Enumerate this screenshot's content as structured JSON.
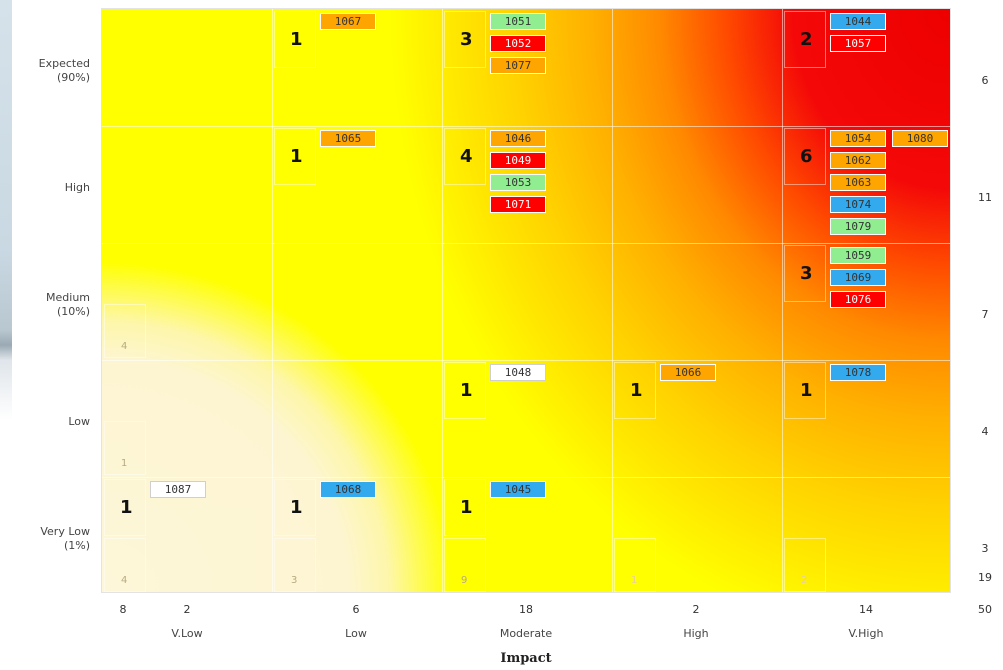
{
  "chart_data": {
    "type": "heatmap",
    "xlabel": "Impact",
    "impact_categories": [
      "V.Low",
      "Low",
      "Moderate",
      "High",
      "V.High"
    ],
    "likelihood_categories": [
      "Expected\n(90%)",
      "High",
      "Medium\n(10%)",
      "Low",
      "Very Low\n(1%)"
    ],
    "column_totals": [
      "2",
      "6",
      "18",
      "2",
      "14"
    ],
    "row_totals": [
      "6",
      "11",
      "7",
      "4",
      "3"
    ],
    "left_corner_total": "8",
    "left_cell_extra_totals": [
      "4",
      "1"
    ],
    "grand_total": "50",
    "secondary_grand_total": "19",
    "cells": [
      {
        "row": 0,
        "col": 1,
        "count": "1",
        "items": [
          {
            "id": "1067",
            "status": "orange"
          }
        ]
      },
      {
        "row": 0,
        "col": 2,
        "count": "3",
        "items": [
          {
            "id": "1051",
            "status": "green"
          },
          {
            "id": "1052",
            "status": "red"
          },
          {
            "id": "1077",
            "status": "orange"
          }
        ]
      },
      {
        "row": 0,
        "col": 4,
        "count": "2",
        "items": [
          {
            "id": "1044",
            "status": "blue"
          },
          {
            "id": "1057",
            "status": "red"
          }
        ]
      },
      {
        "row": 1,
        "col": 1,
        "count": "1",
        "items": [
          {
            "id": "1065",
            "status": "orange"
          }
        ]
      },
      {
        "row": 1,
        "col": 2,
        "count": "4",
        "items": [
          {
            "id": "1046",
            "status": "orange"
          },
          {
            "id": "1049",
            "status": "red"
          },
          {
            "id": "1053",
            "status": "green"
          },
          {
            "id": "1071",
            "status": "red"
          }
        ]
      },
      {
        "row": 1,
        "col": 4,
        "count": "6",
        "items": [
          {
            "id": "1054",
            "status": "orange"
          },
          {
            "id": "1080",
            "status": "orange"
          },
          {
            "id": "1062",
            "status": "orange"
          },
          {
            "id": "1063",
            "status": "orange"
          },
          {
            "id": "1074",
            "status": "blue"
          },
          {
            "id": "1079",
            "status": "green"
          }
        ]
      },
      {
        "row": 2,
        "col": 4,
        "count": "3",
        "items": [
          {
            "id": "1059",
            "status": "green"
          },
          {
            "id": "1069",
            "status": "blue"
          },
          {
            "id": "1076",
            "status": "red"
          }
        ]
      },
      {
        "row": 3,
        "col": 2,
        "count": "1",
        "items": [
          {
            "id": "1048",
            "status": "white"
          }
        ]
      },
      {
        "row": 3,
        "col": 3,
        "count": "1",
        "items": [
          {
            "id": "1066",
            "status": "orange"
          }
        ]
      },
      {
        "row": 3,
        "col": 4,
        "count": "1",
        "items": [
          {
            "id": "1078",
            "status": "blue"
          }
        ]
      },
      {
        "row": 4,
        "col": 0,
        "count": "1",
        "items": [
          {
            "id": "1087",
            "status": "white"
          }
        ]
      },
      {
        "row": 4,
        "col": 1,
        "count": "1",
        "items": [
          {
            "id": "1068",
            "status": "blue"
          }
        ]
      },
      {
        "row": 4,
        "col": 2,
        "count": "1",
        "items": [
          {
            "id": "1045",
            "status": "blue"
          }
        ]
      }
    ],
    "mini_counts": [
      {
        "row": 2,
        "col": 0,
        "value": "4"
      },
      {
        "row": 3,
        "col": 0,
        "value": "1"
      },
      {
        "row": 4,
        "col": 0,
        "value": "4"
      },
      {
        "row": 4,
        "col": 1,
        "value": "3"
      },
      {
        "row": 4,
        "col": 2,
        "value": "9"
      },
      {
        "row": 4,
        "col": 3,
        "value": "1"
      },
      {
        "row": 4,
        "col": 4,
        "value": "2"
      }
    ]
  },
  "colors": {
    "green": "#90ee90",
    "red": "#ff0000",
    "orange": "#ffa500",
    "blue": "#33aaee",
    "white": "#ffffff"
  }
}
